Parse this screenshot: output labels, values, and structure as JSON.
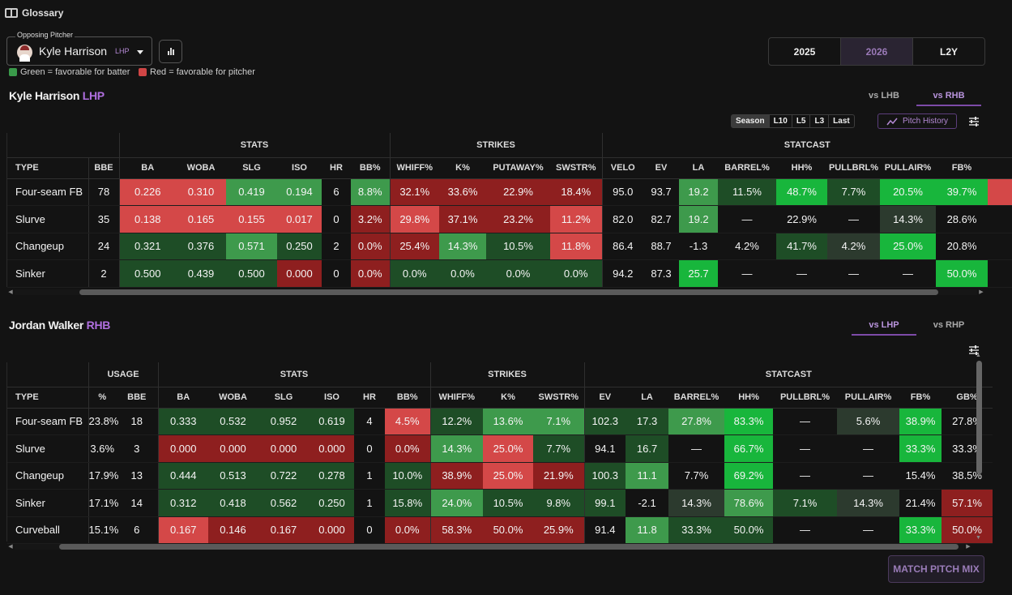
{
  "glossary": "Glossary",
  "pitcher": {
    "field_label": "Opposing Pitcher",
    "name": "Kyle Harrison",
    "hand": "LHP"
  },
  "legend": {
    "green": "Green = favorable for batter",
    "red": "Red = favorable for pitcher",
    "green_color": "#3a9a4a",
    "red_color": "#d04545"
  },
  "years": [
    "2025",
    "2026",
    "L2Y"
  ],
  "active_year": "2026",
  "pitcher_section": {
    "name": "Kyle Harrison",
    "hand": "LHP",
    "tabs": [
      "vs LHB",
      "vs RHB"
    ],
    "active_tab": "vs RHB",
    "ranges": [
      "Season",
      "L10",
      "L5",
      "L3",
      "Last"
    ],
    "active_range": "Season",
    "pitch_history": "Pitch History",
    "groups": [
      {
        "label": "",
        "span": 2
      },
      {
        "label": "STATS",
        "span": 6
      },
      {
        "label": "STRIKES",
        "span": 4
      },
      {
        "label": "STATCAST",
        "span": 9
      }
    ],
    "columns": [
      "TYPE",
      "BBE",
      "BA",
      "WOBA",
      "SLG",
      "ISO",
      "HR",
      "BB%",
      "WHIFF%",
      "K%",
      "PUTAWAY%",
      "SWSTR%",
      "VELO",
      "EV",
      "LA",
      "BARREL%",
      "HH%",
      "PULLBRL%",
      "PULLAIR%",
      "FB%",
      ""
    ],
    "rows": [
      {
        "type": "Four-seam FB",
        "cells": [
          "78",
          "0.226",
          "0.310",
          "0.419",
          "0.194",
          "6",
          "8.8%",
          "32.1%",
          "33.6%",
          "22.9%",
          "18.4%",
          "95.0",
          "93.7",
          "19.2",
          "11.5%",
          "48.7%",
          "7.7%",
          "20.5%",
          "39.7%",
          ""
        ],
        "colors": [
          "",
          "r",
          "r",
          "g",
          "g",
          "",
          "g",
          "dr",
          "dr",
          "dr",
          "dr",
          "",
          "",
          "g",
          "dg",
          "G",
          "dg",
          "G",
          "G",
          "r"
        ]
      },
      {
        "type": "Slurve",
        "cells": [
          "35",
          "0.138",
          "0.165",
          "0.155",
          "0.017",
          "0",
          "3.2%",
          "29.8%",
          "37.1%",
          "23.2%",
          "11.2%",
          "82.0",
          "82.7",
          "19.2",
          "—",
          "22.9%",
          "—",
          "14.3%",
          "28.6%",
          ""
        ],
        "colors": [
          "",
          "r",
          "r",
          "r",
          "r",
          "",
          "dr",
          "r",
          "dr",
          "dr",
          "r",
          "",
          "",
          "g",
          "",
          "",
          "",
          "dk",
          "",
          ""
        ]
      },
      {
        "type": "Changeup",
        "cells": [
          "24",
          "0.321",
          "0.376",
          "0.571",
          "0.250",
          "2",
          "0.0%",
          "25.4%",
          "14.3%",
          "10.5%",
          "11.8%",
          "86.4",
          "88.7",
          "-1.3",
          "4.2%",
          "41.7%",
          "4.2%",
          "25.0%",
          "20.8%",
          ""
        ],
        "colors": [
          "",
          "dg",
          "dg",
          "g",
          "dg",
          "",
          "dr",
          "dr",
          "g",
          "dg",
          "r",
          "",
          "",
          "",
          "",
          "dg",
          "dk",
          "G",
          "",
          ""
        ]
      },
      {
        "type": "Sinker",
        "cells": [
          "2",
          "0.500",
          "0.439",
          "0.500",
          "0.000",
          "0",
          "0.0%",
          "0.0%",
          "0.0%",
          "0.0%",
          "0.0%",
          "94.2",
          "87.3",
          "25.7",
          "—",
          "—",
          "—",
          "—",
          "50.0%",
          ""
        ],
        "colors": [
          "",
          "dg",
          "dg",
          "dg",
          "dr",
          "",
          "dr",
          "dg",
          "dg",
          "dg",
          "dg",
          "",
          "",
          "G",
          "",
          "",
          "",
          "",
          "G",
          ""
        ]
      }
    ]
  },
  "batter_section": {
    "name": "Jordan Walker",
    "hand": "RHB",
    "tabs": [
      "vs LHP",
      "vs RHP"
    ],
    "active_tab": "vs LHP",
    "groups": [
      {
        "label": "",
        "span": 1
      },
      {
        "label": "USAGE",
        "span": 2
      },
      {
        "label": "STATS",
        "span": 6
      },
      {
        "label": "STRIKES",
        "span": 3
      },
      {
        "label": "STATCAST",
        "span": 8
      }
    ],
    "columns": [
      "TYPE",
      "%",
      "BBE",
      "BA",
      "WOBA",
      "SLG",
      "ISO",
      "HR",
      "BB%",
      "WHIFF%",
      "K%",
      "SWSTR%",
      "EV",
      "LA",
      "BARREL%",
      "HH%",
      "PULLBRL%",
      "PULLAIR%",
      "FB%",
      "GB%"
    ],
    "rows": [
      {
        "type": "Four-seam FB",
        "cells": [
          "23.8%",
          "18",
          "0.333",
          "0.532",
          "0.952",
          "0.619",
          "4",
          "4.5%",
          "12.2%",
          "13.6%",
          "7.1%",
          "102.3",
          "17.3",
          "27.8%",
          "83.3%",
          "—",
          "5.6%",
          "38.9%",
          "27.8%"
        ],
        "colors": [
          "",
          "",
          "dg",
          "dg",
          "dg",
          "dg",
          "",
          "r",
          "dg",
          "g",
          "g",
          "dg",
          "dg",
          "g",
          "G",
          "",
          "dk",
          "G",
          ""
        ]
      },
      {
        "type": "Slurve",
        "cells": [
          "3.6%",
          "3",
          "0.000",
          "0.000",
          "0.000",
          "0.000",
          "0",
          "0.0%",
          "14.3%",
          "25.0%",
          "7.7%",
          "94.1",
          "16.7",
          "—",
          "66.7%",
          "—",
          "—",
          "33.3%",
          "33.3%"
        ],
        "colors": [
          "",
          "",
          "dr",
          "dr",
          "dr",
          "dr",
          "",
          "dr",
          "g",
          "r",
          "dg",
          "",
          "dg",
          "",
          "G",
          "",
          "",
          "G",
          ""
        ]
      },
      {
        "type": "Changeup",
        "cells": [
          "17.9%",
          "13",
          "0.444",
          "0.513",
          "0.722",
          "0.278",
          "1",
          "10.0%",
          "38.9%",
          "25.0%",
          "21.9%",
          "100.3",
          "11.1",
          "7.7%",
          "69.2%",
          "—",
          "—",
          "15.4%",
          "38.5%"
        ],
        "colors": [
          "",
          "",
          "dg",
          "dg",
          "dg",
          "dg",
          "",
          "dg",
          "dr",
          "r",
          "dr",
          "dg",
          "g",
          "",
          "G",
          "",
          "",
          "",
          ""
        ]
      },
      {
        "type": "Sinker",
        "cells": [
          "17.1%",
          "14",
          "0.312",
          "0.418",
          "0.562",
          "0.250",
          "1",
          "15.8%",
          "24.0%",
          "10.5%",
          "9.8%",
          "99.1",
          "-2.1",
          "14.3%",
          "78.6%",
          "7.1%",
          "14.3%",
          "21.4%",
          "57.1%"
        ],
        "colors": [
          "",
          "",
          "dg",
          "dg",
          "dg",
          "dg",
          "",
          "dg",
          "g",
          "dg",
          "dg",
          "dg",
          "",
          "dk",
          "g",
          "dg",
          "dk",
          "",
          "dr"
        ]
      },
      {
        "type": "Curveball",
        "cells": [
          "15.1%",
          "6",
          "0.167",
          "0.146",
          "0.167",
          "0.000",
          "0",
          "0.0%",
          "58.3%",
          "50.0%",
          "25.9%",
          "91.4",
          "11.8",
          "33.3%",
          "50.0%",
          "—",
          "—",
          "33.3%",
          "50.0%"
        ],
        "colors": [
          "",
          "",
          "r",
          "dr",
          "dr",
          "dr",
          "",
          "dr",
          "dr",
          "dr",
          "dr",
          "",
          "g",
          "dg",
          "dg",
          "",
          "",
          "G",
          "dr"
        ]
      }
    ]
  },
  "match_button": "MATCH PITCH MIX"
}
